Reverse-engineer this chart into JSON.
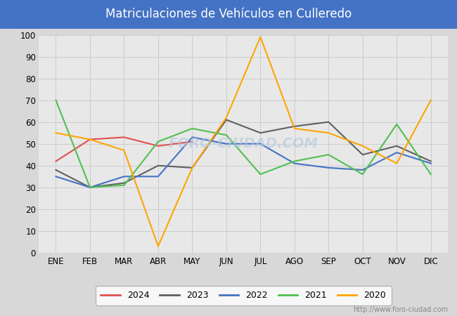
{
  "title": "Matriculaciones de Vehículos en Culleredo",
  "title_bg_color": "#4472c4",
  "title_text_color": "white",
  "months": [
    "ENE",
    "FEB",
    "MAR",
    "ABR",
    "MAY",
    "JUN",
    "JUL",
    "AGO",
    "SEP",
    "OCT",
    "NOV",
    "DIC"
  ],
  "series": {
    "2024": {
      "color": "#e05050",
      "data": [
        42,
        52,
        53,
        49,
        51,
        null,
        null,
        null,
        null,
        null,
        null,
        null
      ]
    },
    "2023": {
      "color": "#606060",
      "data": [
        38,
        30,
        32,
        40,
        39,
        61,
        55,
        58,
        60,
        45,
        49,
        42
      ]
    },
    "2022": {
      "color": "#4472c4",
      "data": [
        35,
        30,
        35,
        35,
        53,
        50,
        50,
        41,
        39,
        38,
        46,
        41
      ]
    },
    "2021": {
      "color": "#50c050",
      "data": [
        70,
        30,
        31,
        51,
        57,
        54,
        36,
        42,
        45,
        36,
        59,
        36
      ]
    },
    "2020": {
      "color": "#ffa500",
      "data": [
        55,
        52,
        47,
        3,
        39,
        62,
        99,
        57,
        55,
        49,
        41,
        70
      ]
    }
  },
  "ylim": [
    0,
    100
  ],
  "yticks": [
    0,
    10,
    20,
    30,
    40,
    50,
    60,
    70,
    80,
    90,
    100
  ],
  "grid_color": "#cccccc",
  "outer_bg_color": "#d8d8d8",
  "plot_bg_color": "#e8e8e8",
  "watermark": "FORO-CIUDAD.COM",
  "url": "http://www.foro-ciudad.com",
  "legend_order": [
    "2024",
    "2023",
    "2022",
    "2021",
    "2020"
  ]
}
